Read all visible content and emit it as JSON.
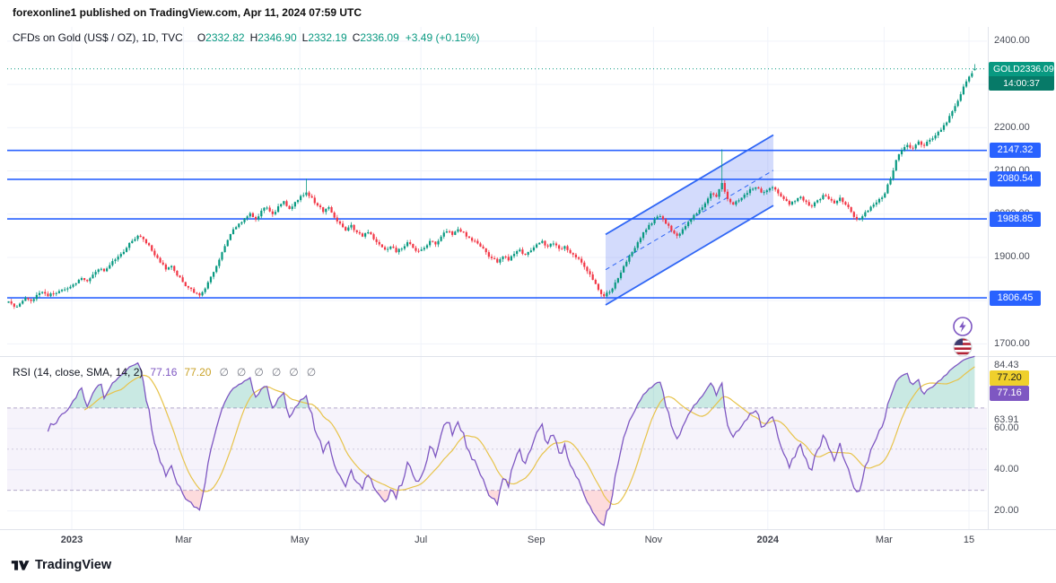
{
  "header": {
    "published_line": "forexonline1 published on TradingView.com, Apr 11, 2024 07:59 UTC"
  },
  "watermark": {
    "brand": "TradingView"
  },
  "symbol_legend": {
    "title": "CFDs on Gold (US$ / OZ), 1D, TVC",
    "o_label": "O",
    "o": "2332.82",
    "h_label": "H",
    "h": "2346.90",
    "l_label": "L",
    "l": "2332.19",
    "c_label": "C",
    "c": "2336.09",
    "change": "+3.49 (+0.15%)"
  },
  "rsi_legend": {
    "title": "RSI (14, close, SMA, 14, 2)",
    "rsi_value": "77.16",
    "sma_value": "77.20",
    "empty_values": [
      "∅",
      "∅",
      "∅",
      "∅",
      "∅",
      "∅"
    ]
  },
  "price_axis": {
    "ticks": [
      {
        "label": "2400.00",
        "price": 2400
      },
      {
        "label": "2300.00",
        "price": 2300
      },
      {
        "label": "2200.00",
        "price": 2200
      },
      {
        "label": "2100.00",
        "price": 2100
      },
      {
        "label": "2000.00",
        "price": 2000
      },
      {
        "label": "1900.00",
        "price": 1900
      },
      {
        "label": "1800.00",
        "price": 1800
      },
      {
        "label": "1700.00",
        "price": 1700
      }
    ],
    "badges": [
      {
        "label": "2147.32",
        "price": 2147.32
      },
      {
        "label": "2080.54",
        "price": 2080.54
      },
      {
        "label": "1988.85",
        "price": 1988.85
      },
      {
        "label": "1806.45",
        "price": 1806.45
      }
    ],
    "last_price_badge": {
      "symbol": "GOLD",
      "price": "2336.09",
      "countdown": "14:00:37"
    }
  },
  "rsi_axis": {
    "labels": [
      {
        "text": "84.43",
        "value": 90.5
      },
      {
        "text": "63.91",
        "value": 63.91
      },
      {
        "text": "60.00",
        "value": 60
      },
      {
        "text": "40.00",
        "value": 40
      },
      {
        "text": "20.00",
        "value": 20
      }
    ],
    "badges": {
      "sma": "77.20",
      "rsi": "77.16"
    }
  },
  "x_axis": {
    "ticks": [
      {
        "label": "2023",
        "f": 0.0667,
        "bold": true
      },
      {
        "label": "Mar",
        "f": 0.182,
        "bold": false
      },
      {
        "label": "May",
        "f": 0.302,
        "bold": false
      },
      {
        "label": "Jul",
        "f": 0.427,
        "bold": false
      },
      {
        "label": "Sep",
        "f": 0.546,
        "bold": false
      },
      {
        "label": "Nov",
        "f": 0.667,
        "bold": false
      },
      {
        "label": "2024",
        "f": 0.785,
        "bold": true
      },
      {
        "label": "Mar",
        "f": 0.905,
        "bold": false
      },
      {
        "label": "15",
        "f": 0.9926,
        "bold": false
      }
    ]
  },
  "icons": {
    "boost": "lightning-bolt-icon",
    "country": "us-flag-icon",
    "logo": "tradingview-logo"
  },
  "chart_data": {
    "type": "candlestick",
    "symbol": "CFDs on Gold (US$ / OZ)",
    "interval": "1D",
    "exchange": "TVC",
    "ylim": [
      1680,
      2433
    ],
    "x_range": [
      "Dec 2022",
      "Apr 15 2024"
    ],
    "closes": [
      1798,
      1786,
      1793,
      1806,
      1799,
      1813,
      1820,
      1810,
      1816,
      1822,
      1826,
      1832,
      1840,
      1852,
      1845,
      1860,
      1872,
      1868,
      1882,
      1895,
      1908,
      1922,
      1938,
      1950,
      1942,
      1928,
      1905,
      1888,
      1872,
      1880,
      1858,
      1843,
      1830,
      1818,
      1812,
      1828,
      1855,
      1880,
      1912,
      1940,
      1965,
      1978,
      1990,
      2002,
      1988,
      2008,
      2015,
      2000,
      2018,
      2030,
      2012,
      2028,
      2042,
      2050,
      2038,
      2020,
      2005,
      2016,
      1992,
      1978,
      1962,
      1975,
      1958,
      1948,
      1958,
      1942,
      1930,
      1918,
      1925,
      1912,
      1920,
      1935,
      1922,
      1915,
      1922,
      1938,
      1930,
      1948,
      1960,
      1952,
      1965,
      1958,
      1945,
      1938,
      1925,
      1912,
      1898,
      1888,
      1902,
      1893,
      1908,
      1918,
      1906,
      1916,
      1930,
      1938,
      1925,
      1932,
      1920,
      1926,
      1910,
      1900,
      1888,
      1868,
      1848,
      1825,
      1810,
      1820,
      1842,
      1865,
      1890,
      1912,
      1935,
      1958,
      1975,
      1988,
      1995,
      1978,
      1962,
      1950,
      1965,
      1982,
      1998,
      2010,
      2025,
      2048,
      2040,
      2072,
      2035,
      2022,
      2032,
      2045,
      2058,
      2062,
      2050,
      2055,
      2062,
      2048,
      2035,
      2022,
      2030,
      2040,
      2028,
      2018,
      2032,
      2044,
      2035,
      2025,
      2038,
      2022,
      2005,
      1988,
      1995,
      2008,
      2022,
      2035,
      2048,
      2082,
      2125,
      2148,
      2160,
      2152,
      2168,
      2158,
      2172,
      2182,
      2195,
      2212,
      2238,
      2262,
      2295,
      2318,
      2336
    ],
    "last_candle": {
      "o": 2332.82,
      "h": 2346.9,
      "l": 2332.19,
      "c": 2336.09
    },
    "spikes": [
      {
        "index": 127,
        "high": 2150
      },
      {
        "index": 53,
        "high": 2082
      }
    ],
    "levels": [
      2147.32,
      2080.54,
      1988.85,
      1806.45
    ],
    "current_price": 2336.09,
    "channel": {
      "x1f": 0.6176,
      "x2f": 0.7907,
      "lower_p1": 1790,
      "lower_p2": 2020,
      "upper_p1": 1953,
      "upper_p2": 2183
    },
    "rsi": {
      "period": 14,
      "sma_period": 14,
      "bands": [
        70,
        50,
        30
      ],
      "band_fill": [
        30,
        70
      ],
      "current": 77.16,
      "sma_current": 77.2,
      "vmax": 93,
      "vmin": 12
    }
  },
  "colors": {
    "up": "#089981",
    "down": "#f23645",
    "line_blue": "#2962ff",
    "rsi_purple": "#7e57c2",
    "rsi_yellow": "#e7c34a",
    "channel_fill": "rgba(79,112,245,0.25)",
    "channel_line": "#2f66f5",
    "grid": "#f0f3fa",
    "current": "#089981",
    "ob_fill": "rgba(8,153,129,0.22)",
    "os_fill": "rgba(242,54,69,0.18)",
    "band_fill": "rgba(126,87,194,0.07)"
  }
}
